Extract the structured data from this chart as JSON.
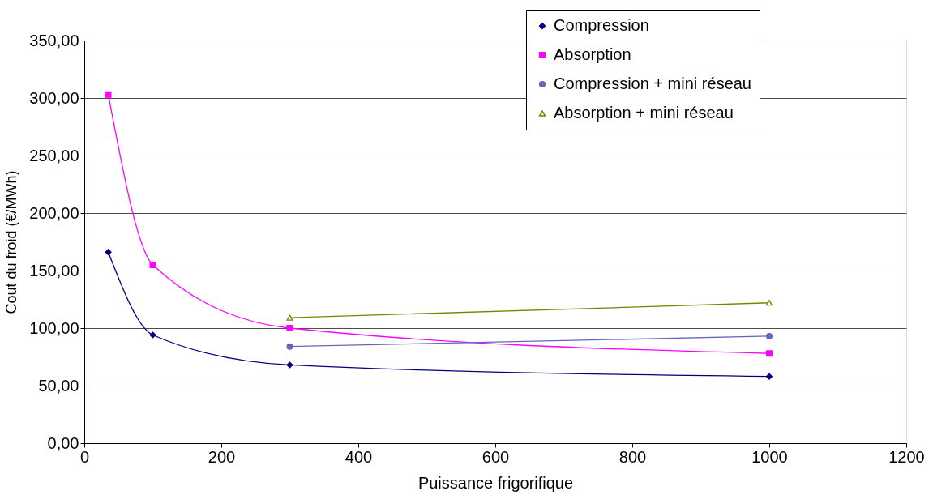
{
  "chart_data": {
    "type": "line",
    "xlabel": "Puissance frigorifique",
    "ylabel": "Cout du froid (€/MWh)",
    "xlim": [
      0,
      1200
    ],
    "xticks": [
      0,
      200,
      400,
      600,
      800,
      1000,
      1200
    ],
    "ylim": [
      0,
      350
    ],
    "yticks": [
      {
        "value": 0,
        "label": "0,00"
      },
      {
        "value": 50,
        "label": "50,00"
      },
      {
        "value": 100,
        "label": "100,00"
      },
      {
        "value": 150,
        "label": "150,00"
      },
      {
        "value": 200,
        "label": "200,00"
      },
      {
        "value": 250,
        "label": "250,00"
      },
      {
        "value": 300,
        "label": "300,00"
      },
      {
        "value": 350,
        "label": "350,00"
      }
    ],
    "grid": "y",
    "legend": "top right",
    "series": [
      {
        "name": "Compression",
        "color": "#000080",
        "marker": "diamond",
        "x": [
          35,
          100,
          300,
          1000
        ],
        "values": [
          166,
          94,
          68,
          58
        ]
      },
      {
        "name": "Absorption",
        "color": "#ff00ff",
        "marker": "square",
        "x": [
          35,
          100,
          300,
          1000
        ],
        "values": [
          303,
          155,
          100,
          78
        ]
      },
      {
        "name": "Compression + mini réseau",
        "color": "#6666bb",
        "marker": "circle",
        "x": [
          300,
          1000
        ],
        "values": [
          84,
          93
        ]
      },
      {
        "name": "Absorption + mini réseau",
        "color": "#808000",
        "marker": "triangle",
        "x": [
          300,
          1000
        ],
        "values": [
          109,
          122
        ]
      }
    ]
  }
}
